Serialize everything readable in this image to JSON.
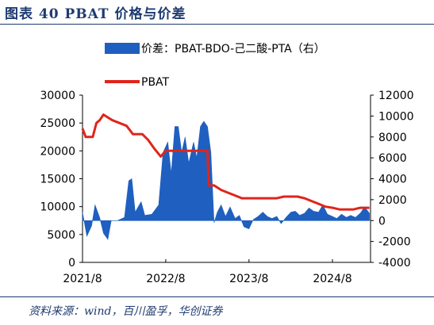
{
  "figure": {
    "title": "图表 40   PBAT 价格与价差",
    "source": "资料来源：wind，百川盈孚，华创证券"
  },
  "chart_data": {
    "type": "line",
    "title": "",
    "legend_position": "top",
    "x_ticks": [
      "2021/8",
      "2022/8",
      "2023/8",
      "2024/8"
    ],
    "y_left": {
      "label": "",
      "range": [
        0,
        30000
      ],
      "ticks": [
        0,
        5000,
        10000,
        15000,
        20000,
        25000,
        30000
      ]
    },
    "y_right": {
      "label": "",
      "range": [
        -4000,
        12000
      ],
      "ticks": [
        -4000,
        -2000,
        0,
        2000,
        4000,
        6000,
        8000,
        10000,
        12000
      ]
    },
    "series": [
      {
        "name": "价差：PBAT-BDO-己二酸-PTA（右）",
        "kind": "area",
        "axis": "right",
        "color": "#1f5fbf",
        "points": [
          [
            "2021-08-01",
            800
          ],
          [
            "2021-08-20",
            -1500
          ],
          [
            "2021-09-10",
            -500
          ],
          [
            "2021-09-25",
            1500
          ],
          [
            "2021-10-15",
            300
          ],
          [
            "2021-11-01",
            -1200
          ],
          [
            "2021-11-20",
            -1800
          ],
          [
            "2021-12-05",
            0
          ],
          [
            "2022-01-01",
            0
          ],
          [
            "2022-02-01",
            300
          ],
          [
            "2022-02-20",
            3800
          ],
          [
            "2022-03-05",
            4000
          ],
          [
            "2022-03-20",
            800
          ],
          [
            "2022-04-15",
            1800
          ],
          [
            "2022-05-01",
            500
          ],
          [
            "2022-06-01",
            600
          ],
          [
            "2022-07-01",
            1500
          ],
          [
            "2022-07-20",
            6500
          ],
          [
            "2022-08-10",
            7500
          ],
          [
            "2022-08-25",
            4500
          ],
          [
            "2022-09-10",
            9000
          ],
          [
            "2022-09-25",
            9000
          ],
          [
            "2022-10-10",
            6500
          ],
          [
            "2022-10-25",
            8000
          ],
          [
            "2022-11-10",
            5500
          ],
          [
            "2022-12-01",
            7500
          ],
          [
            "2022-12-15",
            6000
          ],
          [
            "2022-12-31",
            9000
          ],
          [
            "2023-01-15",
            9500
          ],
          [
            "2023-01-31",
            9000
          ],
          [
            "2023-02-15",
            6500
          ],
          [
            "2023-03-01",
            -200
          ],
          [
            "2023-03-15",
            800
          ],
          [
            "2023-04-01",
            1500
          ],
          [
            "2023-04-20",
            400
          ],
          [
            "2023-05-10",
            1300
          ],
          [
            "2023-06-01",
            200
          ],
          [
            "2023-06-20",
            500
          ],
          [
            "2023-07-10",
            -600
          ],
          [
            "2023-08-01",
            -800
          ],
          [
            "2023-08-20",
            100
          ],
          [
            "2023-09-10",
            400
          ],
          [
            "2023-10-01",
            800
          ],
          [
            "2023-10-20",
            400
          ],
          [
            "2023-11-10",
            200
          ],
          [
            "2023-12-01",
            400
          ],
          [
            "2023-12-20",
            -300
          ],
          [
            "2024-01-10",
            300
          ],
          [
            "2024-02-01",
            800
          ],
          [
            "2024-02-20",
            900
          ],
          [
            "2024-03-10",
            500
          ],
          [
            "2024-04-01",
            700
          ],
          [
            "2024-04-20",
            1200
          ],
          [
            "2024-05-10",
            900
          ],
          [
            "2024-06-01",
            800
          ],
          [
            "2024-06-20",
            1500
          ],
          [
            "2024-07-10",
            600
          ],
          [
            "2024-08-01",
            400
          ],
          [
            "2024-08-20",
            200
          ],
          [
            "2024-09-10",
            600
          ],
          [
            "2024-10-01",
            300
          ],
          [
            "2024-10-20",
            500
          ],
          [
            "2024-11-10",
            300
          ],
          [
            "2024-12-01",
            700
          ],
          [
            "2024-12-20",
            1300
          ],
          [
            "2025-01-10",
            700
          ]
        ]
      },
      {
        "name": "PBAT",
        "kind": "line",
        "axis": "left",
        "color": "#e0251b",
        "points": [
          [
            "2021-08-01",
            24000
          ],
          [
            "2021-08-15",
            22500
          ],
          [
            "2021-09-15",
            22500
          ],
          [
            "2021-10-01",
            25000
          ],
          [
            "2021-10-15",
            25500
          ],
          [
            "2021-11-01",
            26500
          ],
          [
            "2021-11-20",
            26000
          ],
          [
            "2021-12-10",
            25500
          ],
          [
            "2022-01-10",
            25000
          ],
          [
            "2022-02-10",
            24500
          ],
          [
            "2022-03-10",
            23000
          ],
          [
            "2022-04-20",
            23000
          ],
          [
            "2022-05-15",
            22000
          ],
          [
            "2022-06-10",
            20500
          ],
          [
            "2022-07-10",
            19000
          ],
          [
            "2022-08-01",
            20000
          ],
          [
            "2022-09-01",
            20000
          ],
          [
            "2022-10-01",
            20000
          ],
          [
            "2022-11-01",
            20000
          ],
          [
            "2022-12-01",
            20000
          ],
          [
            "2023-01-01",
            20000
          ],
          [
            "2023-01-31",
            20000
          ],
          [
            "2023-02-05",
            13800
          ],
          [
            "2023-03-01",
            13800
          ],
          [
            "2023-04-01",
            13000
          ],
          [
            "2023-05-01",
            12500
          ],
          [
            "2023-06-01",
            12000
          ],
          [
            "2023-07-01",
            11500
          ],
          [
            "2023-08-01",
            11500
          ],
          [
            "2023-09-01",
            11500
          ],
          [
            "2023-10-01",
            11500
          ],
          [
            "2023-11-01",
            11500
          ],
          [
            "2023-12-01",
            11500
          ],
          [
            "2024-01-01",
            11800
          ],
          [
            "2024-02-01",
            11800
          ],
          [
            "2024-03-01",
            11800
          ],
          [
            "2024-04-01",
            11500
          ],
          [
            "2024-05-01",
            11000
          ],
          [
            "2024-06-01",
            10500
          ],
          [
            "2024-07-01",
            10000
          ],
          [
            "2024-08-01",
            9800
          ],
          [
            "2024-09-01",
            9500
          ],
          [
            "2024-10-01",
            9500
          ],
          [
            "2024-11-01",
            9500
          ],
          [
            "2024-12-01",
            9800
          ],
          [
            "2025-01-10",
            9800
          ]
        ]
      }
    ]
  }
}
